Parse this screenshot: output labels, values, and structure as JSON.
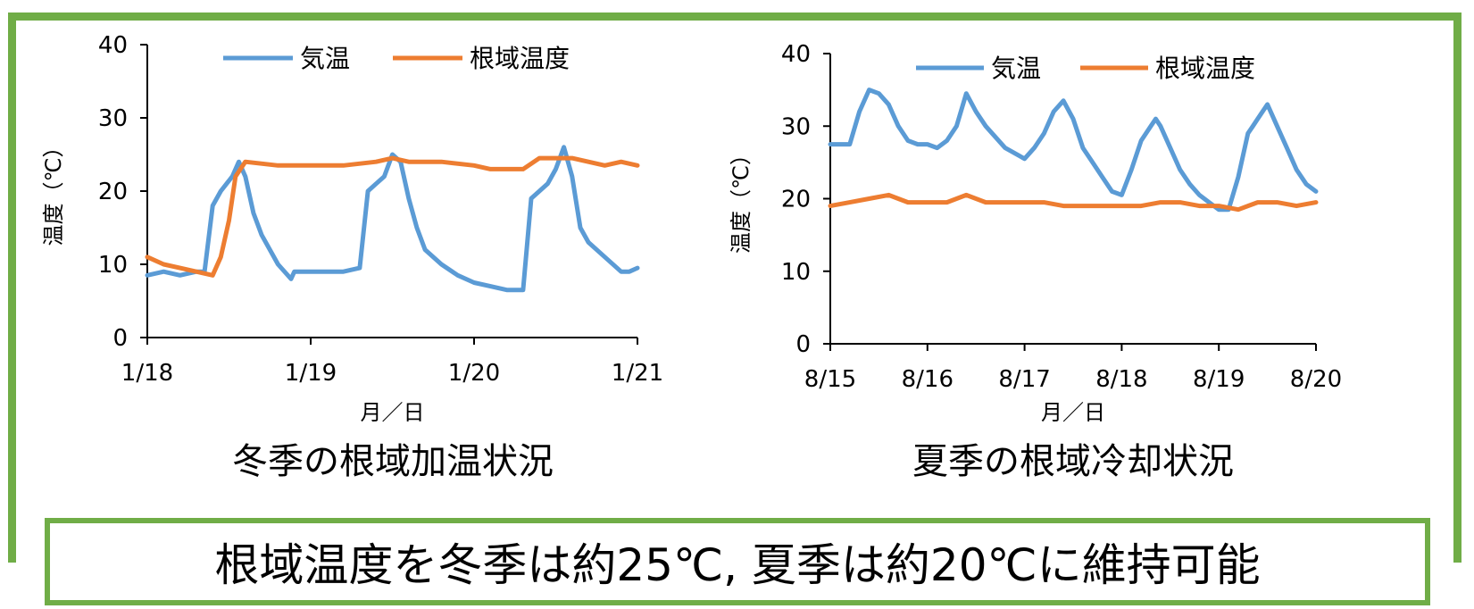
{
  "banner": "根域温度を冬季は約25℃, 夏季は約20℃に維持可能",
  "colors": {
    "air": "#5B9BD5",
    "root": "#ED7D31",
    "frame": "#70AD47"
  },
  "chart_data": [
    {
      "type": "line",
      "title": "冬季の根域加温状況",
      "xlabel": "月／日",
      "ylabel": "温度（℃）",
      "ylim": [
        0,
        40
      ],
      "yticks": [
        0,
        10,
        20,
        30,
        40
      ],
      "xlim": [
        0,
        3
      ],
      "xticks": [
        0,
        1,
        2,
        3
      ],
      "xticklabels": [
        "1/18",
        "1/19",
        "1/20",
        "1/21"
      ],
      "legend": "top",
      "series": [
        {
          "name": "気温",
          "x": [
            0,
            0.1,
            0.2,
            0.3,
            0.35,
            0.4,
            0.45,
            0.52,
            0.56,
            0.6,
            0.65,
            0.7,
            0.8,
            0.88,
            0.9,
            1.0,
            1.1,
            1.2,
            1.3,
            1.35,
            1.4,
            1.45,
            1.5,
            1.55,
            1.6,
            1.65,
            1.7,
            1.8,
            1.9,
            2.0,
            2.1,
            2.2,
            2.3,
            2.35,
            2.4,
            2.45,
            2.5,
            2.55,
            2.6,
            2.65,
            2.7,
            2.8,
            2.9,
            2.95,
            3.0
          ],
          "y": [
            8.5,
            9,
            8.5,
            9,
            9,
            18,
            20,
            22,
            24,
            22,
            17,
            14,
            10,
            8,
            9,
            9,
            9,
            9,
            9.5,
            20,
            21,
            22,
            25,
            24,
            19,
            15,
            12,
            10,
            8.5,
            7.5,
            7,
            6.5,
            6.5,
            19,
            20,
            21,
            23,
            26,
            22,
            15,
            13,
            11,
            9,
            9,
            9.5
          ]
        },
        {
          "name": "根域温度",
          "x": [
            0,
            0.1,
            0.2,
            0.3,
            0.4,
            0.45,
            0.5,
            0.54,
            0.6,
            0.8,
            1.0,
            1.2,
            1.4,
            1.5,
            1.6,
            1.8,
            2.0,
            2.1,
            2.2,
            2.3,
            2.4,
            2.5,
            2.6,
            2.7,
            2.8,
            2.9,
            3.0
          ],
          "y": [
            11,
            10,
            9.5,
            9,
            8.5,
            11,
            16,
            22,
            24,
            23.5,
            23.5,
            23.5,
            24,
            24.5,
            24,
            24,
            23.5,
            23,
            23,
            23,
            24.5,
            24.5,
            24.5,
            24,
            23.5,
            24,
            23.5
          ]
        }
      ]
    },
    {
      "type": "line",
      "title": "夏季の根域冷却状況",
      "xlabel": "月／日",
      "ylabel": "温度（℃）",
      "ylim": [
        0,
        40
      ],
      "yticks": [
        0,
        10,
        20,
        30,
        40
      ],
      "xlim": [
        0,
        5
      ],
      "xticks": [
        0,
        1,
        2,
        3,
        4,
        5
      ],
      "xticklabels": [
        "8/15",
        "8/16",
        "8/17",
        "8/18",
        "8/19",
        "8/20"
      ],
      "legend": "top",
      "series": [
        {
          "name": "気温",
          "x": [
            0,
            0.2,
            0.3,
            0.4,
            0.5,
            0.6,
            0.7,
            0.8,
            0.9,
            1.0,
            1.1,
            1.2,
            1.3,
            1.4,
            1.5,
            1.6,
            1.8,
            2.0,
            2.1,
            2.2,
            2.3,
            2.4,
            2.5,
            2.6,
            2.7,
            2.8,
            2.9,
            3.0,
            3.1,
            3.2,
            3.3,
            3.35,
            3.4,
            3.5,
            3.6,
            3.7,
            3.8,
            3.9,
            4.0,
            4.1,
            4.2,
            4.3,
            4.35,
            4.4,
            4.5,
            4.6,
            4.7,
            4.8,
            4.9,
            5.0
          ],
          "y": [
            27.5,
            27.5,
            32,
            35,
            34.5,
            33,
            30,
            28,
            27.5,
            27.5,
            27,
            28,
            30,
            34.5,
            32,
            30,
            27,
            25.5,
            27,
            29,
            32,
            33.5,
            31,
            27,
            25,
            23,
            21,
            20.5,
            24,
            28,
            30,
            31,
            30,
            27,
            24,
            22,
            20.5,
            19.5,
            18.5,
            18.5,
            23,
            29,
            30,
            31,
            33,
            30,
            27,
            24,
            22,
            21
          ]
        },
        {
          "name": "根域温度",
          "x": [
            0,
            0.2,
            0.4,
            0.6,
            0.8,
            1.0,
            1.2,
            1.4,
            1.6,
            1.8,
            2.0,
            2.2,
            2.4,
            2.6,
            2.8,
            3.0,
            3.2,
            3.4,
            3.6,
            3.8,
            4.0,
            4.2,
            4.4,
            4.6,
            4.8,
            5.0
          ],
          "y": [
            19,
            19.5,
            20,
            20.5,
            19.5,
            19.5,
            19.5,
            20.5,
            19.5,
            19.5,
            19.5,
            19.5,
            19,
            19,
            19,
            19,
            19,
            19.5,
            19.5,
            19,
            19,
            18.5,
            19.5,
            19.5,
            19,
            19.5
          ]
        }
      ]
    }
  ]
}
